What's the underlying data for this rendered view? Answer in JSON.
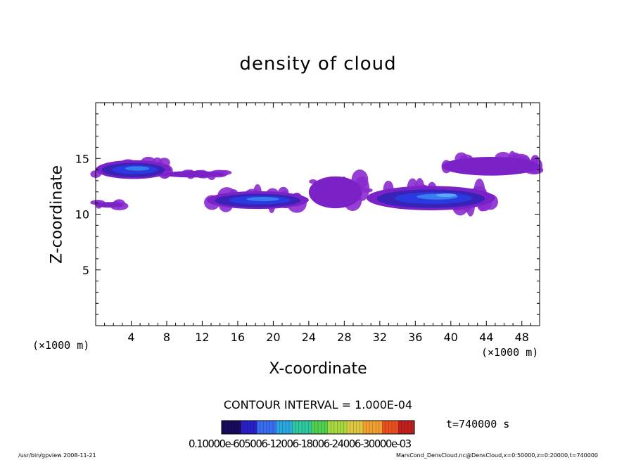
{
  "chart_data": {
    "type": "heatmap",
    "title": "density of cloud",
    "xlabel": "X-coordinate",
    "ylabel": "Z-coordinate",
    "x_unit_label": "(×1000 m)",
    "xlim": [
      0,
      50
    ],
    "ylim": [
      0,
      20
    ],
    "x_ticks": [
      4,
      8,
      12,
      16,
      20,
      24,
      28,
      32,
      36,
      40,
      44,
      48
    ],
    "y_ticks": [
      5,
      10,
      15
    ],
    "contour_interval_text": "CONTOUR INTERVAL = 1.000E-04",
    "time_text": "t=740000 s",
    "colorbar_labels_text": "0.10000e-605006-12006-18006-24006-30000e-03",
    "colorbar_colors": [
      "#1a0a5c",
      "#2a20c8",
      "#3a6cf0",
      "#2aa8e0",
      "#30c8a0",
      "#50d050",
      "#a8d840",
      "#e0c840",
      "#f0a030",
      "#e85020",
      "#c02020"
    ],
    "cloud_regions": [
      {
        "name": "upper-left",
        "x": [
          0,
          8.5
        ],
        "z": [
          13.2,
          15.2
        ],
        "peak": 0.55
      },
      {
        "name": "upper-left-tail",
        "x": [
          7.5,
          14.5
        ],
        "z": [
          13.3,
          14.0
        ],
        "peak": 0.05
      },
      {
        "name": "left-lower",
        "x": [
          0,
          3.0
        ],
        "z": [
          10.6,
          11.2
        ],
        "peak": 0.05
      },
      {
        "name": "center-mound",
        "x": [
          12.5,
          24
        ],
        "z": [
          10.5,
          12.4
        ],
        "peak": 0.6
      },
      {
        "name": "small-patches",
        "x": [
          24,
          30
        ],
        "z": [
          10.6,
          14.0
        ],
        "peak": 0.05
      },
      {
        "name": "right-mound",
        "x": [
          30.5,
          45
        ],
        "z": [
          10.4,
          13.0
        ],
        "peak": 0.75
      },
      {
        "name": "upper-right",
        "x": [
          39,
          50
        ],
        "z": [
          13.5,
          15.5
        ],
        "peak": 0.2
      }
    ]
  },
  "footer": {
    "left": "/usr/bin/gpview   2008-11-21",
    "right": "MarsCond_DensCloud.nc@DensCloud,x=0:50000,z=0:20000,t=740000"
  }
}
